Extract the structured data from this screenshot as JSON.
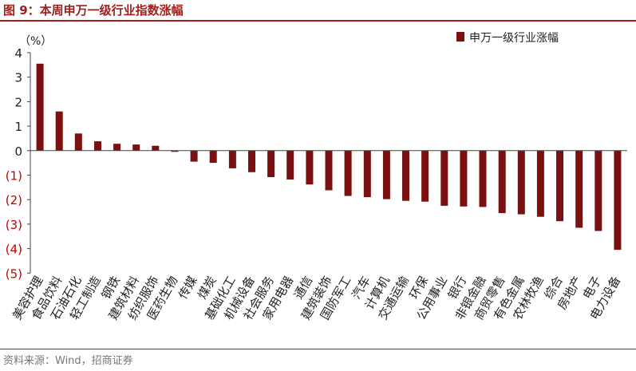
{
  "figure": {
    "title": "图 9：本周申万一级行业指数涨幅",
    "source": "资料来源：Wind，招商证券"
  },
  "colors": {
    "bar": "#7b1010",
    "negative_tick": "#c00000",
    "title": "#a01e1e",
    "axis": "#444444"
  },
  "chart_data": {
    "type": "bar",
    "ylabel": "（%）",
    "ylim": [
      -5,
      4
    ],
    "yticks": [
      {
        "value": 4,
        "label": "4"
      },
      {
        "value": 3,
        "label": "3"
      },
      {
        "value": 2,
        "label": "2"
      },
      {
        "value": 1,
        "label": "1"
      },
      {
        "value": 0,
        "label": "0"
      },
      {
        "value": -1,
        "label": "(1)"
      },
      {
        "value": -2,
        "label": "(2)"
      },
      {
        "value": -3,
        "label": "(3)"
      },
      {
        "value": -4,
        "label": "(4)"
      },
      {
        "value": -5,
        "label": "(5)"
      }
    ],
    "grid": false,
    "legend_position": "top-right",
    "series": [
      {
        "name": "申万一级行业涨幅",
        "values": [
          3.55,
          1.6,
          0.7,
          0.38,
          0.28,
          0.25,
          0.2,
          -0.05,
          -0.45,
          -0.5,
          -0.72,
          -0.88,
          -1.08,
          -1.18,
          -1.38,
          -1.62,
          -1.85,
          -1.9,
          -1.98,
          -2.05,
          -2.08,
          -2.25,
          -2.28,
          -2.3,
          -2.55,
          -2.6,
          -2.7,
          -2.88,
          -3.15,
          -3.28,
          -4.05
        ]
      }
    ],
    "categories": [
      "美容护理",
      "食品饮料",
      "石油石化",
      "轻工制造",
      "钢铁",
      "建筑材料",
      "纺织服饰",
      "医药生物",
      "传媒",
      "煤炭",
      "基础化工",
      "机械设备",
      "社会服务",
      "家用电器",
      "通信",
      "建筑装饰",
      "国防军工",
      "汽车",
      "计算机",
      "交通运输",
      "环保",
      "公用事业",
      "银行",
      "非银金融",
      "商贸零售",
      "有色金属",
      "农林牧渔",
      "综合",
      "房地产",
      "电子",
      "电力设备"
    ]
  }
}
